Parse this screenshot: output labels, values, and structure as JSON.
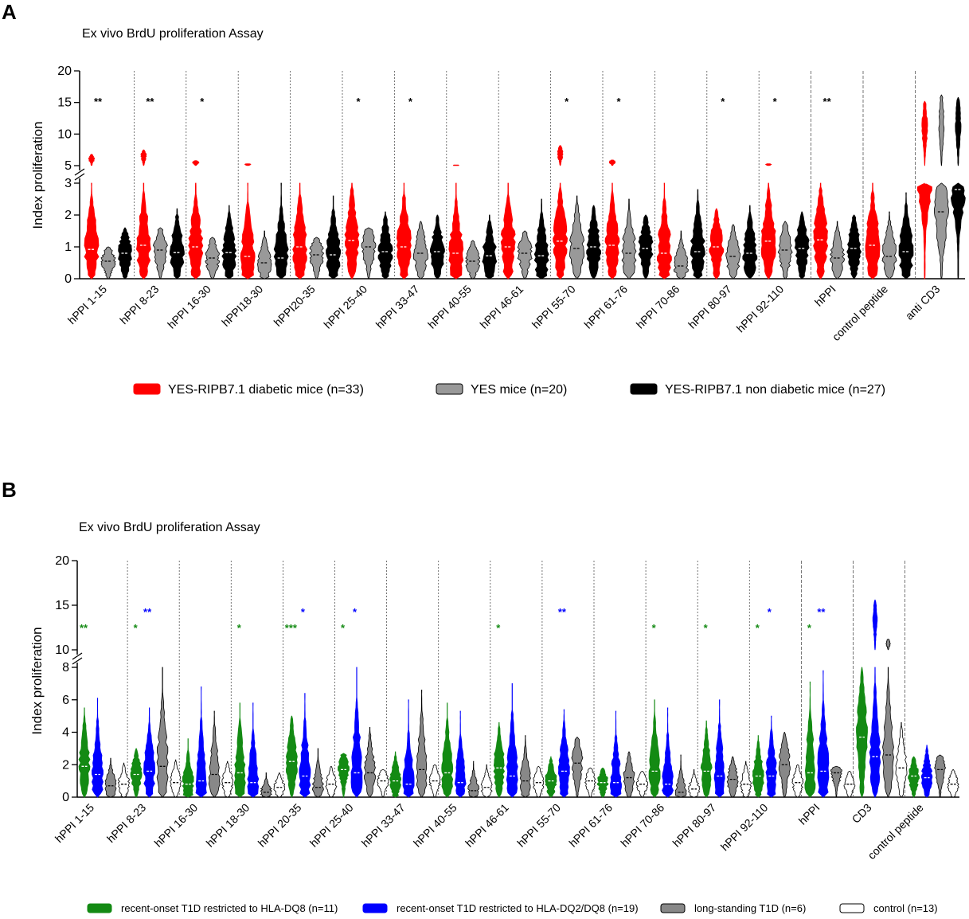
{
  "chart_data": [
    {
      "panel": "A",
      "type": "violin",
      "title": "Ex vivo BrdU proliferation Assay",
      "ylabel": "Index proliferation",
      "xlabel": "",
      "ylim": [
        0,
        20
      ],
      "y_axis_break": [
        3,
        5
      ],
      "yticks": [
        "0",
        "1",
        "2",
        "3",
        "5",
        "10",
        "15",
        "20"
      ],
      "categories": [
        "hPPI 1-15",
        "hPPI 8-23",
        "hPPI 16-30",
        "hPPI18-30",
        "hPPI20-35",
        "hPPI 25-40",
        "hPPI 33-47",
        "hPPI 40-55",
        "hPPI 46-61",
        "hPPI 55-70",
        "hPPI 61-76",
        "hPPI 70-86",
        "hPPI 80-97",
        "hPPI 92-110",
        "hPPI",
        "control peptide",
        "anti CD3"
      ],
      "significance": [
        "**",
        "**",
        "*",
        "",
        "",
        "*",
        "*",
        "",
        "",
        "*",
        "*",
        "",
        "*",
        "*",
        "**",
        "",
        ""
      ],
      "series": [
        {
          "name": "YES-RIPB7.1 diabetic mice (n=33)",
          "color": "#ff0000",
          "medians": [
            0.92,
            1.05,
            1.0,
            0.7,
            1.0,
            1.2,
            1.0,
            0.8,
            1.0,
            1.18,
            1.05,
            0.8,
            1.0,
            1.18,
            1.22,
            1.05,
            3.0
          ],
          "maxima": [
            6.8,
            7.5,
            5.8,
            5.3,
            3.0,
            3.0,
            3.0,
            5.1,
            3.0,
            8.2,
            5.9,
            3.0,
            2.2,
            5.3,
            3.0,
            3.0,
            15.2
          ]
        },
        {
          "name": "YES mice (n=20)",
          "color": "#999999",
          "medians": [
            0.55,
            0.9,
            0.65,
            0.5,
            0.75,
            1.0,
            0.8,
            0.55,
            0.8,
            0.95,
            0.8,
            0.4,
            0.7,
            0.9,
            0.65,
            0.7,
            2.1
          ],
          "maxima": [
            1.0,
            1.6,
            1.3,
            1.5,
            1.3,
            1.6,
            1.8,
            1.2,
            1.5,
            2.6,
            2.5,
            1.5,
            1.7,
            1.8,
            1.8,
            2.1,
            16.2
          ]
        },
        {
          "name": "YES-RIPB7.1 non diabetic mice (n=27)",
          "color": "#000000",
          "medians": [
            0.8,
            0.82,
            0.82,
            0.65,
            0.75,
            0.85,
            0.85,
            0.72,
            0.72,
            1.0,
            0.95,
            0.85,
            0.8,
            0.95,
            0.95,
            0.85,
            2.8
          ],
          "maxima": [
            1.6,
            2.2,
            2.3,
            3.0,
            2.6,
            2.1,
            2.0,
            2.0,
            2.5,
            2.3,
            2.0,
            2.8,
            2.3,
            2.1,
            2.0,
            2.7,
            15.8
          ]
        }
      ],
      "legend": [
        "YES-RIPB7.1 diabetic mice (n=33)",
        "YES mice (n=20)",
        "YES-RIPB7.1 non diabetic mice (n=27)"
      ]
    },
    {
      "panel": "B",
      "type": "violin",
      "title": "Ex vivo BrdU proliferation Assay",
      "ylabel": "Index proliferation",
      "xlabel": "",
      "ylim": [
        0,
        20
      ],
      "y_axis_break": [
        8,
        10
      ],
      "yticks": [
        "0",
        "2",
        "4",
        "6",
        "8",
        "10",
        "15",
        "20"
      ],
      "categories": [
        "hPPI 1-15",
        "hPPI 8-23",
        "hPPI 16-30",
        "hPPI 18-30",
        "hPPI 20-35",
        "hPPI 25-40",
        "hPPI 33-47",
        "hPPI 40-55",
        "hPPI 46-61",
        "hPPI 55-70",
        "hPPI 61-76",
        "hPPI 70-86",
        "hPPI 80-97",
        "hPPI 92-110",
        "hPPI",
        "CD3",
        "control peptide"
      ],
      "significance_green": [
        "**",
        "*",
        "",
        "*",
        "***",
        "*",
        "",
        "",
        "*",
        "",
        "",
        "*",
        "*",
        "*",
        "*",
        "",
        ""
      ],
      "significance_blue": [
        "",
        "**",
        "",
        "",
        "*",
        "*",
        "",
        "",
        "",
        "**",
        "",
        "",
        "",
        "*",
        "**",
        "",
        ""
      ],
      "series": [
        {
          "name": "recent-onset T1D restricted to HLA-DQ8 (n=11)",
          "color": "#138a13",
          "medians": [
            1.9,
            1.4,
            0.8,
            1.5,
            2.2,
            1.7,
            1.0,
            1.5,
            1.8,
            1.0,
            0.9,
            1.6,
            1.6,
            1.3,
            1.5,
            3.7,
            1.3
          ],
          "maxima": [
            5.5,
            3.0,
            3.6,
            5.8,
            5.0,
            2.7,
            2.8,
            5.8,
            4.6,
            2.5,
            1.8,
            6.0,
            4.7,
            3.8,
            7.1,
            8.0,
            2.5
          ]
        },
        {
          "name": "recent-onset T1D restricted to HLA-DQ2/DQ8 (n=19)",
          "color": "#0000ff",
          "medians": [
            1.4,
            1.6,
            1.0,
            0.9,
            1.3,
            1.5,
            0.8,
            0.9,
            1.3,
            1.6,
            0.9,
            0.8,
            1.3,
            1.3,
            1.6,
            2.5,
            1.2
          ],
          "maxima": [
            6.1,
            5.5,
            6.8,
            5.8,
            6.4,
            8.0,
            6.0,
            5.3,
            7.0,
            5.4,
            5.3,
            5.5,
            6.0,
            5.0,
            7.8,
            15.6,
            3.2
          ]
        },
        {
          "name": "long-standing T1D (n=6)",
          "color": "#888888",
          "medians": [
            0.7,
            1.9,
            1.4,
            0.3,
            0.6,
            1.5,
            1.7,
            0.4,
            1.0,
            2.1,
            1.2,
            0.3,
            1.1,
            2.0,
            1.5,
            2.6,
            1.7
          ],
          "maxima": [
            2.4,
            8.0,
            5.3,
            1.5,
            3.0,
            4.3,
            6.6,
            2.2,
            3.8,
            3.7,
            2.8,
            2.6,
            2.5,
            4.0,
            1.9,
            11.2,
            2.6
          ]
        },
        {
          "name": "control (n=13)",
          "color": "#ffffff",
          "medians": [
            0.8,
            0.9,
            0.9,
            0.6,
            0.8,
            1.0,
            1.0,
            0.6,
            0.9,
            1.0,
            0.8,
            0.5,
            0.8,
            0.9,
            0.8,
            1.8,
            0.8
          ],
          "maxima": [
            2.1,
            2.3,
            2.2,
            1.5,
            1.9,
            1.7,
            2.0,
            2.0,
            1.9,
            1.8,
            1.6,
            1.7,
            2.2,
            2.0,
            1.6,
            4.6,
            1.7
          ]
        }
      ],
      "legend": [
        "recent-onset T1D restricted to HLA-DQ8 (n=11)",
        "recent-onset T1D restricted to HLA-DQ2/DQ8 (n=19)",
        "long-standing T1D (n=6)",
        "control (n=13)"
      ]
    }
  ],
  "panels": {
    "a": {
      "letter": "A",
      "title": "Ex vivo BrdU proliferation Assay",
      "ylabel": "Index proliferation"
    },
    "b": {
      "letter": "B",
      "title": "Ex vivo BrdU proliferation Assay",
      "ylabel": "Index proliferation"
    }
  }
}
